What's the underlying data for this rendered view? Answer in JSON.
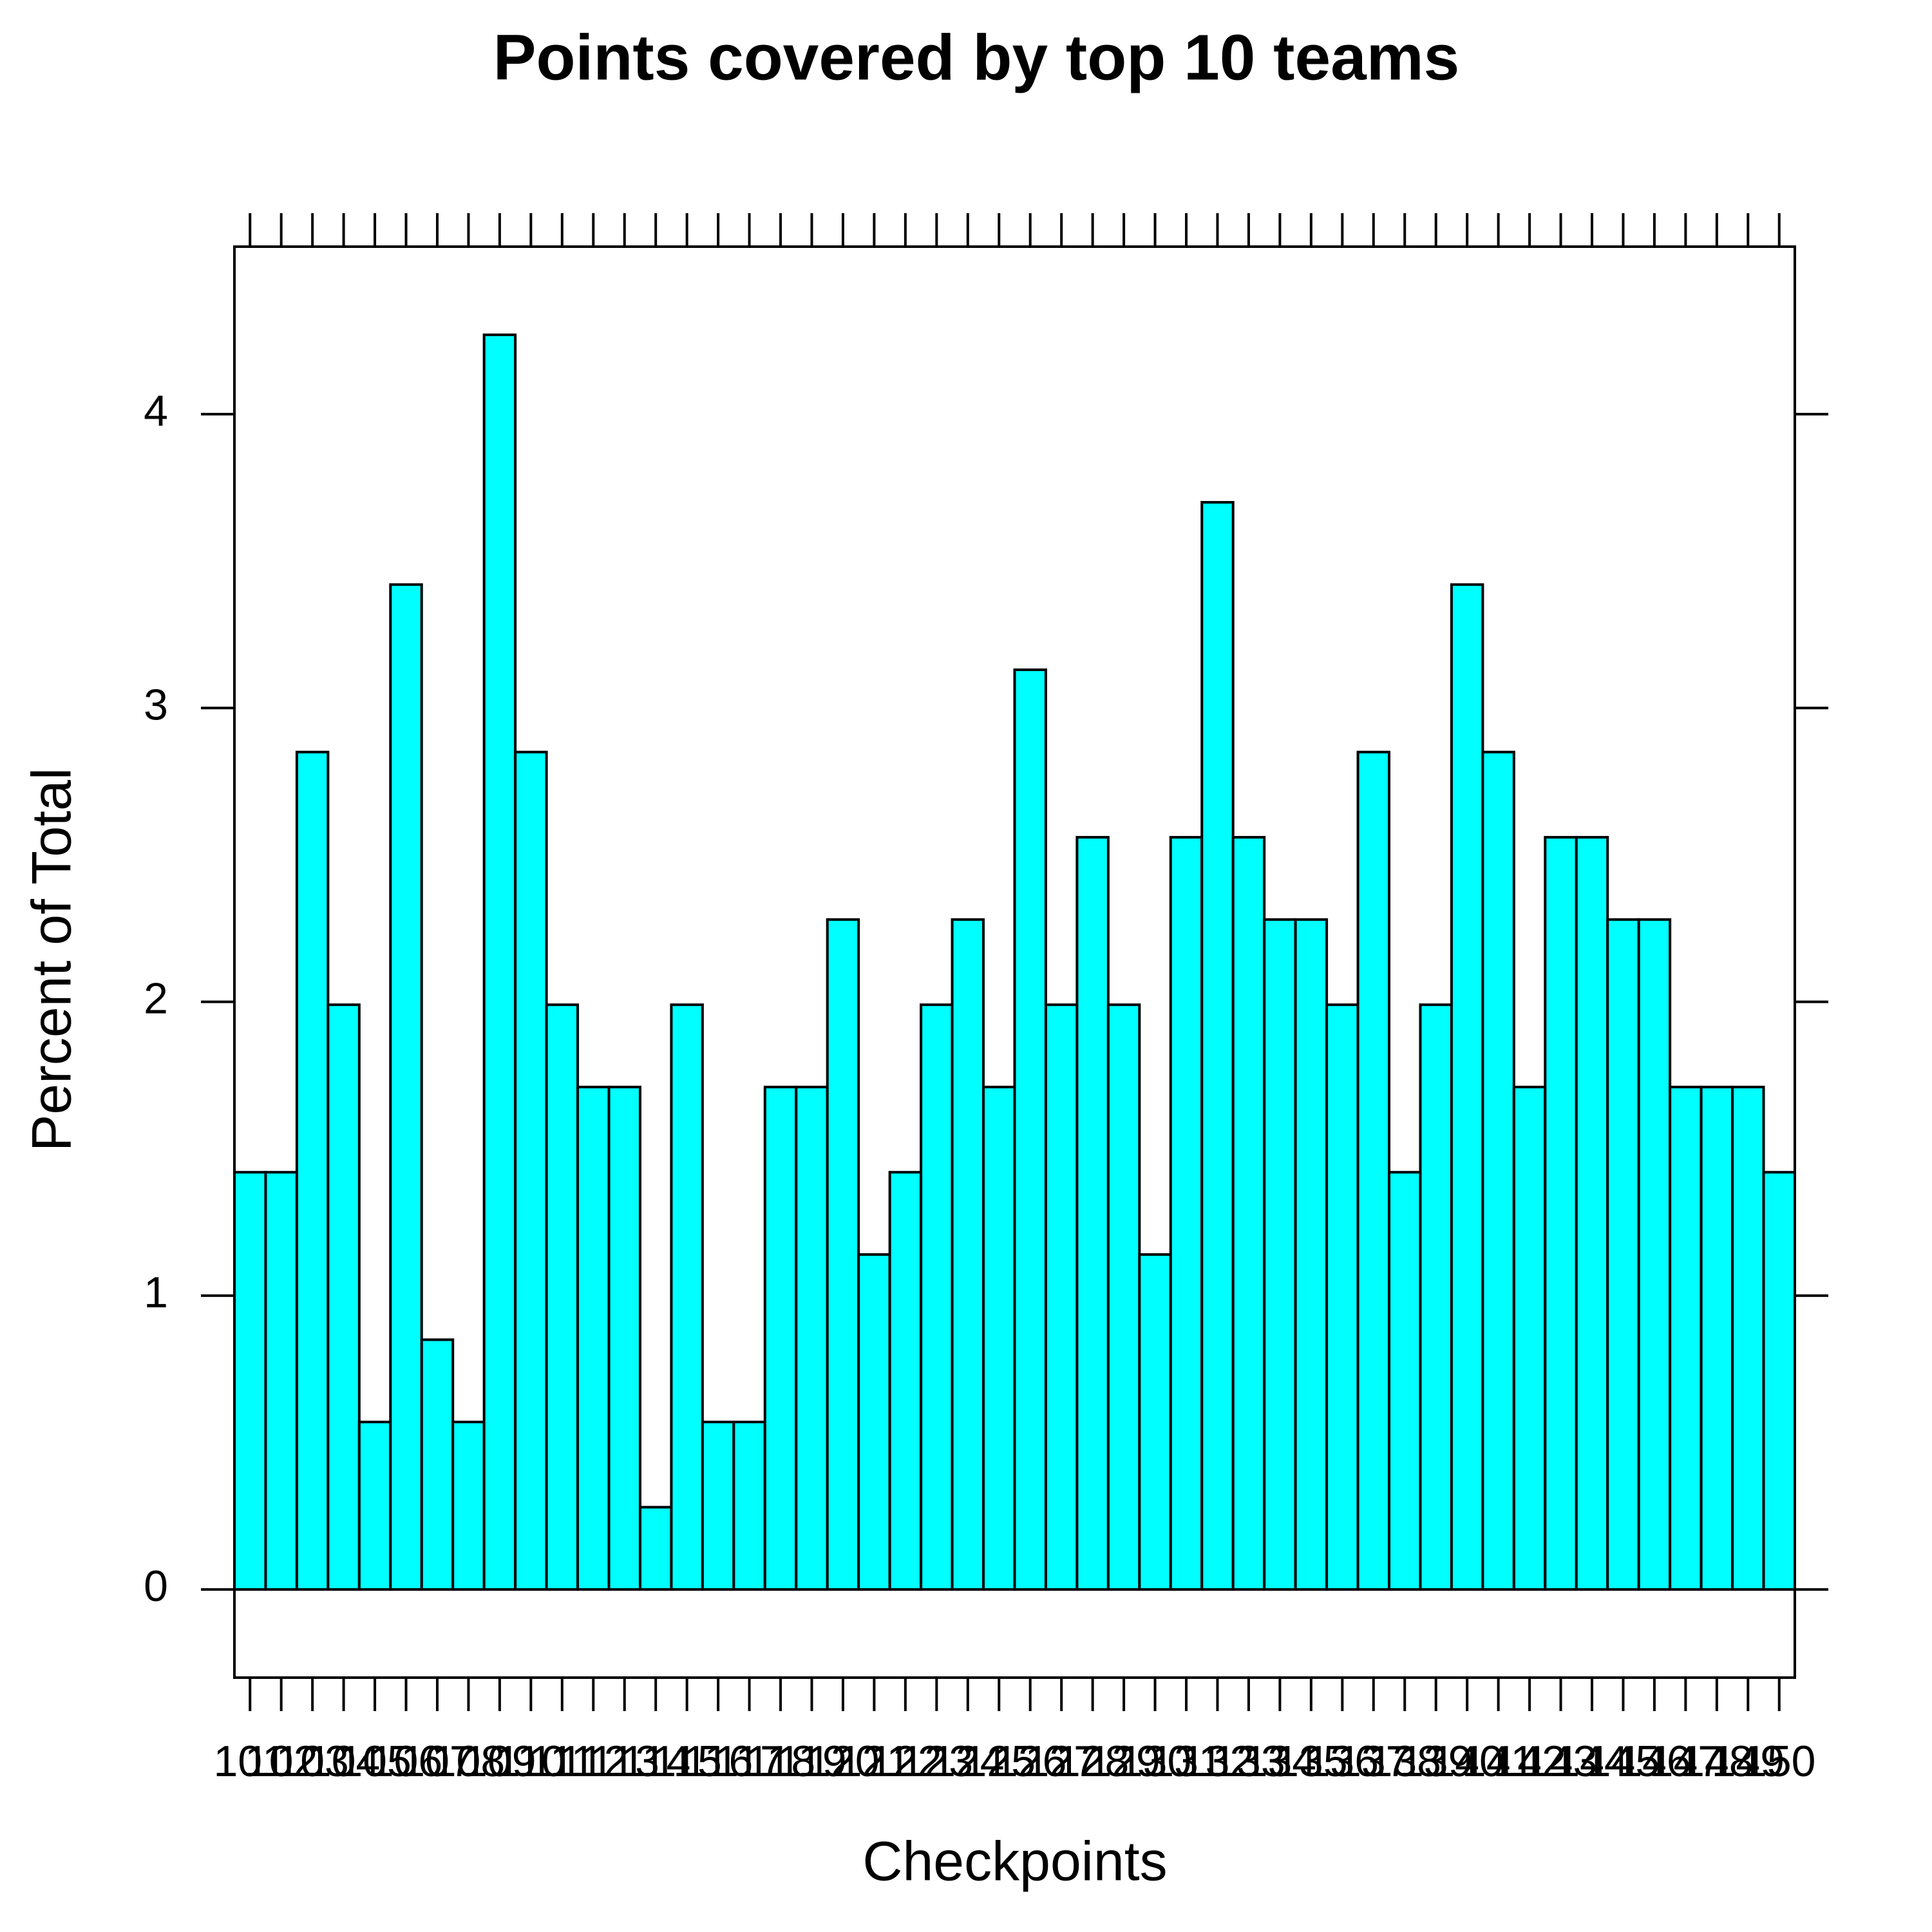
{
  "chart_data": {
    "type": "histogram",
    "title": "Points covered by top 10 teams",
    "xlabel": "Checkpoints",
    "ylabel": "Percent of Total",
    "color": "#00ffff",
    "bins": [
      100.5,
      101.5,
      102.5,
      103.5,
      104.5,
      105.5,
      106.5,
      107.5,
      108.5,
      109.5,
      110.5,
      111.5,
      112.5,
      113.5,
      114.5,
      115.5,
      116.5,
      117.5,
      118.5,
      119.5,
      120.5,
      121.5,
      122.5,
      123.5,
      124.5,
      125.5,
      126.5,
      127.5,
      128.5,
      129.5,
      130.5,
      131.5,
      132.5,
      133.5,
      134.5,
      135.5,
      136.5,
      137.5,
      138.5,
      139.5,
      140.5,
      141.5,
      142.5,
      143.5,
      144.5,
      145.5,
      146.5,
      147.5,
      148.5,
      149.5,
      150.5
    ],
    "values": [
      1.42,
      1.42,
      2.85,
      1.99,
      0.57,
      3.42,
      0.85,
      0.57,
      4.27,
      2.85,
      1.99,
      1.71,
      1.71,
      0.28,
      1.99,
      0.57,
      0.57,
      1.71,
      1.71,
      2.28,
      1.14,
      1.42,
      1.99,
      2.28,
      1.71,
      3.13,
      1.99,
      2.56,
      1.99,
      1.14,
      2.56,
      3.7,
      2.56,
      2.28,
      2.28,
      1.99,
      2.85,
      1.42,
      1.99,
      3.42,
      2.85,
      1.71,
      2.56,
      2.56,
      2.28,
      2.28,
      1.71,
      1.71,
      1.71,
      1.42
    ],
    "xlim": [
      100.5,
      150.5
    ],
    "xticks": [
      101,
      102,
      103,
      104,
      105,
      106,
      107,
      108,
      109,
      110,
      111,
      112,
      113,
      114,
      115,
      116,
      117,
      118,
      119,
      120,
      121,
      122,
      123,
      124,
      125,
      126,
      127,
      128,
      129,
      130,
      131,
      132,
      133,
      134,
      135,
      136,
      137,
      138,
      139,
      140,
      141,
      142,
      143,
      144,
      145,
      146,
      147,
      148,
      149,
      150
    ],
    "ylim": [
      -0.3,
      4.57
    ],
    "yticks": [
      0,
      1,
      2,
      3,
      4
    ]
  }
}
